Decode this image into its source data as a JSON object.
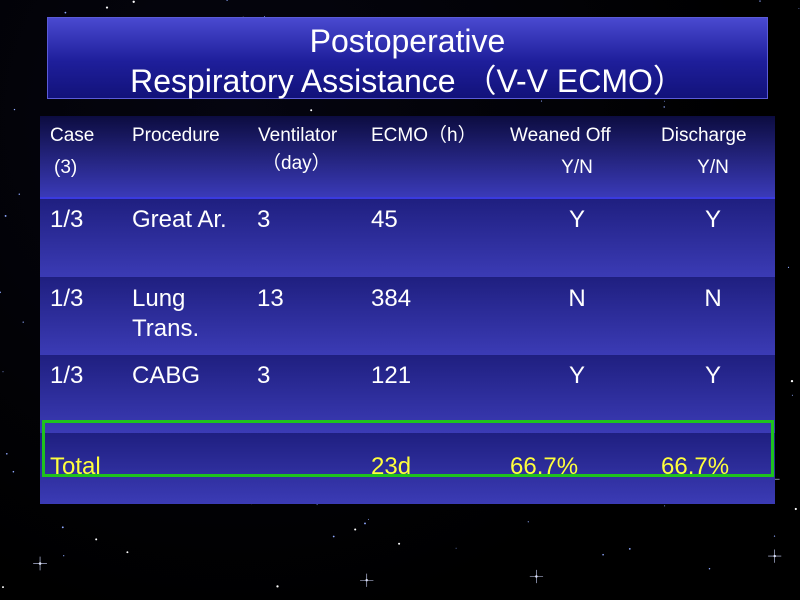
{
  "slide": {
    "title_line1": "Postoperative",
    "title_line2": "Respiratory Assistance （V-V ECMO）"
  },
  "table": {
    "headers": {
      "case": "Case",
      "case_sub": "(3)",
      "procedure": "Procedure",
      "ventilator": "Ventilator",
      "ventilator_sub": "（day）",
      "ecmo": "ECMO（h）",
      "weaned": "Weaned Off",
      "weaned_sub": "Y/N",
      "discharge": "Discharge",
      "discharge_sub": "Y/N"
    },
    "rows": [
      {
        "case": "1/3",
        "procedure": "Great Ar.",
        "procedure_line2": "",
        "ventilator": "3",
        "ecmo": "45",
        "weaned": "Y",
        "discharge": "Y"
      },
      {
        "case": "1/3",
        "procedure": "Lung",
        "procedure_line2": "Trans.",
        "ventilator": "13",
        "ecmo": "384",
        "weaned": "N",
        "discharge": "N"
      },
      {
        "case": "1/3",
        "procedure": "CABG",
        "procedure_line2": "",
        "ventilator": "3",
        "ecmo": "121",
        "weaned": "Y",
        "discharge": "Y"
      }
    ],
    "total": {
      "label": "Total",
      "ecmo": "23d",
      "weaned": "66.7%",
      "discharge": "66.7%"
    }
  },
  "colors": {
    "title_bg": "#2a2ab0",
    "table_bg": "#2b2b8e",
    "total_text": "#ffff3c",
    "total_outline": "#1ec21e"
  }
}
